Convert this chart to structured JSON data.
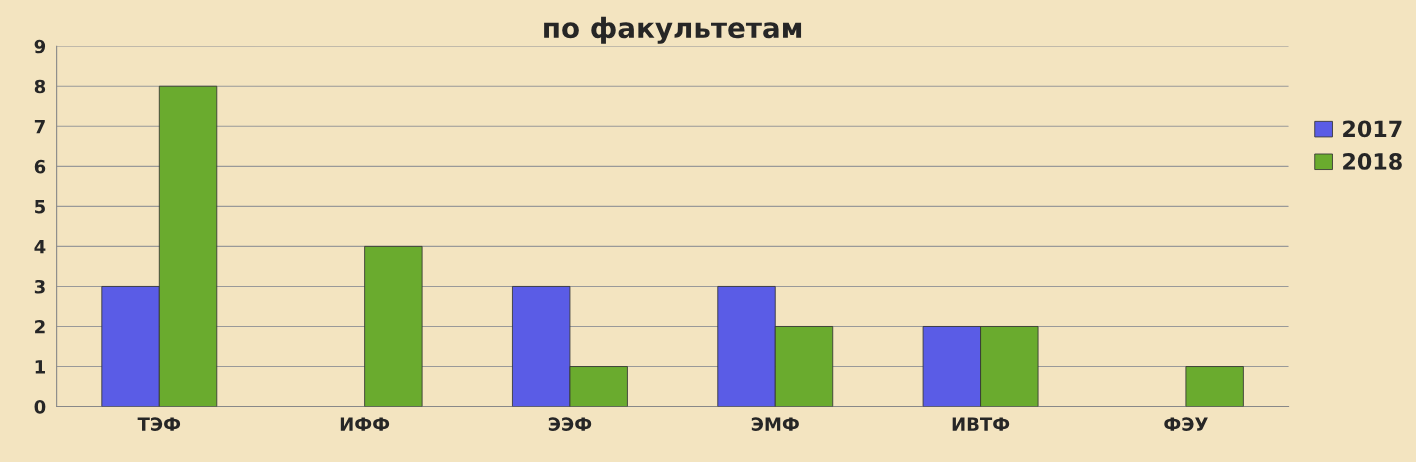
{
  "chart_data": {
    "type": "bar",
    "title": "по факультетам",
    "categories": [
      "ТЭФ",
      "ИФФ",
      "ЭЭФ",
      "ЭМФ",
      "ИВТФ",
      "ФЭУ"
    ],
    "series": [
      {
        "name": "2017",
        "color": "#5a5ce6",
        "values": [
          3,
          null,
          3,
          3,
          2,
          null
        ]
      },
      {
        "name": "2018",
        "color": "#6aab2e",
        "values": [
          8,
          4,
          1,
          2,
          2,
          1
        ]
      }
    ],
    "ylim": [
      0,
      9
    ],
    "yticks": [
      0,
      1,
      2,
      3,
      4,
      5,
      6,
      7,
      8,
      9
    ],
    "grid": "y",
    "legend": "right"
  }
}
